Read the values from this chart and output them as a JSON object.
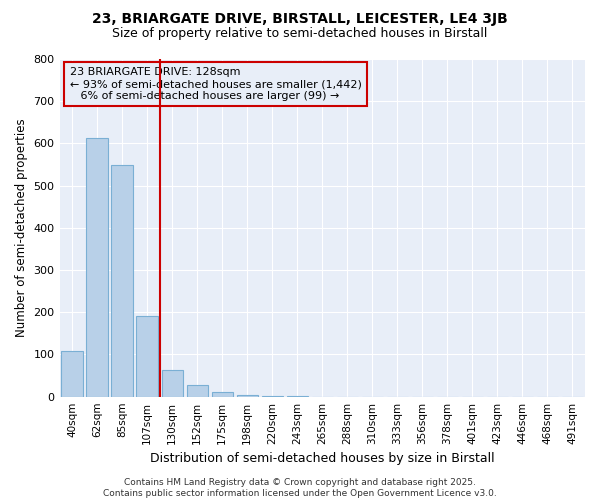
{
  "title": "23, BRIARGATE DRIVE, BIRSTALL, LEICESTER, LE4 3JB",
  "subtitle": "Size of property relative to semi-detached houses in Birstall",
  "xlabel": "Distribution of semi-detached houses by size in Birstall",
  "ylabel": "Number of semi-detached properties",
  "bin_labels": [
    "40sqm",
    "62sqm",
    "85sqm",
    "107sqm",
    "130sqm",
    "152sqm",
    "175sqm",
    "198sqm",
    "220sqm",
    "243sqm",
    "265sqm",
    "288sqm",
    "310sqm",
    "333sqm",
    "356sqm",
    "378sqm",
    "401sqm",
    "423sqm",
    "446sqm",
    "468sqm",
    "491sqm"
  ],
  "bin_values": [
    108,
    612,
    548,
    190,
    63,
    28,
    12,
    5,
    2,
    1,
    0,
    0,
    0,
    0,
    0,
    0,
    0,
    0,
    0,
    0,
    0
  ],
  "red_line_bin_index": 4,
  "annotation_title": "23 BRIARGATE DRIVE: 128sqm",
  "annotation_line1": "← 93% of semi-detached houses are smaller (1,442)",
  "annotation_line2": "6% of semi-detached houses are larger (99) →",
  "bar_color": "#b8d0e8",
  "bar_edge_color": "#7aafd4",
  "red_line_color": "#cc0000",
  "background_color": "#ffffff",
  "plot_bg_color": "#e8eef8",
  "grid_color": "#ffffff",
  "title_color": "#000000",
  "footer_line1": "Contains HM Land Registry data © Crown copyright and database right 2025.",
  "footer_line2": "Contains public sector information licensed under the Open Government Licence v3.0.",
  "ylim": [
    0,
    800
  ],
  "yticks": [
    0,
    100,
    200,
    300,
    400,
    500,
    600,
    700,
    800
  ]
}
